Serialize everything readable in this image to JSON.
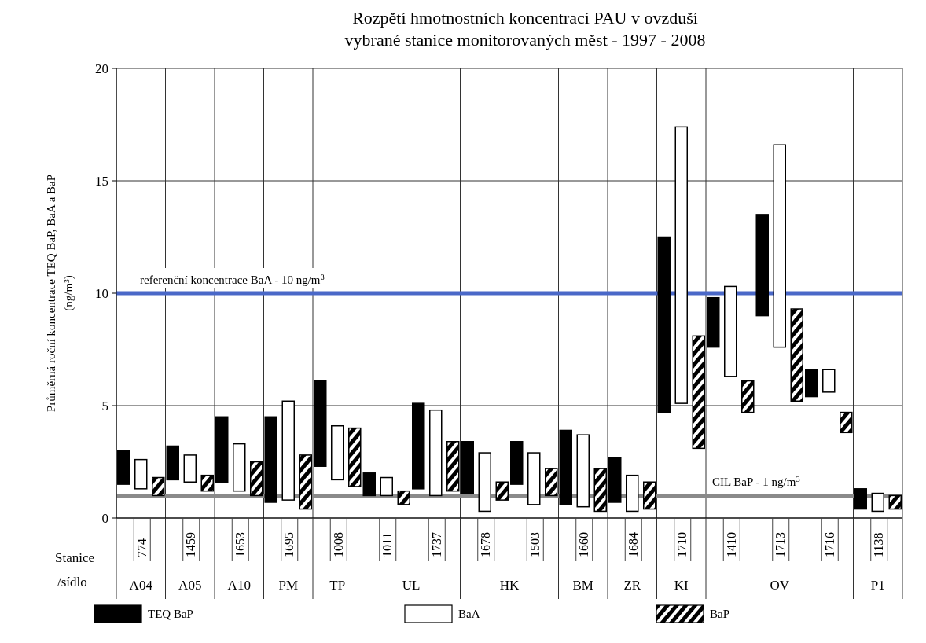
{
  "chart_data": {
    "type": "bar",
    "title": "Rozpětí hmotnostních koncentrací PAU v ovzduší\nvybrané stanice monitorovaných měst - 1997 - 2008",
    "xlabel": "Stanice\n/sídlo",
    "ylabel": "Průměrná roční koncentrace TEQ BaP, BaA a BaP\n(ng/m³)",
    "categories": [
      "774",
      "1459",
      "1653",
      "1695",
      "1008",
      "1011",
      "1737",
      "1678",
      "1503",
      "1660",
      "1684",
      "1710",
      "1410",
      "1713",
      "1716",
      "1138"
    ],
    "series": [
      {
        "name": "TEQ BaP",
        "color": "#000000",
        "base": [
          1.5,
          1.7,
          1.6,
          0.7,
          2.3,
          1.0,
          1.3,
          1.1,
          1.5,
          0.6,
          0.7,
          4.7,
          7.6,
          9.0,
          5.4,
          0.4
        ],
        "values": [
          1.5,
          1.5,
          2.9,
          3.8,
          3.8,
          1.0,
          3.8,
          2.3,
          1.9,
          3.3,
          2.0,
          7.8,
          2.2,
          4.5,
          1.2,
          0.9
        ]
      },
      {
        "name": "BaA",
        "color": "#ffffff",
        "base": [
          1.3,
          1.6,
          1.2,
          0.8,
          1.7,
          1.0,
          1.0,
          0.3,
          0.6,
          0.5,
          0.3,
          5.1,
          6.3,
          7.6,
          5.6,
          0.3
        ],
        "values": [
          1.3,
          1.2,
          2.1,
          4.4,
          2.4,
          0.8,
          3.8,
          2.6,
          2.3,
          3.2,
          1.6,
          12.3,
          4.0,
          9.0,
          1.0,
          0.8
        ]
      },
      {
        "name": "BaP",
        "color": "#000000",
        "base": [
          1.0,
          1.2,
          1.0,
          0.4,
          1.4,
          0.6,
          1.2,
          0.8,
          1.0,
          0.3,
          0.4,
          3.1,
          4.7,
          5.2,
          3.8,
          0.4
        ],
        "values": [
          0.8,
          0.7,
          1.5,
          2.4,
          2.6,
          0.6,
          2.2,
          0.8,
          1.2,
          1.9,
          1.2,
          5.0,
          1.4,
          4.1,
          0.9,
          0.6
        ]
      }
    ],
    "ylim": [
      0,
      20
    ],
    "yticks": [
      0,
      5,
      10,
      15,
      20
    ],
    "grid": true,
    "legend": "bottom",
    "ref_lines": [
      {
        "axis": "y",
        "value": 10,
        "label": "referenční koncentrace BaA - 10 ng/m$^{3}$",
        "color": "#4a68c8"
      },
      {
        "axis": "y",
        "value": 1,
        "label": "CIL BaP - 1 ng/m$^{3}$",
        "color": "#8a8a8a"
      }
    ],
    "annotations": [
      "A04",
      "A05",
      "A10",
      "PM",
      "TP",
      "UL",
      "HK",
      "BM",
      "ZR",
      "KI",
      "OV",
      "P1"
    ]
  }
}
